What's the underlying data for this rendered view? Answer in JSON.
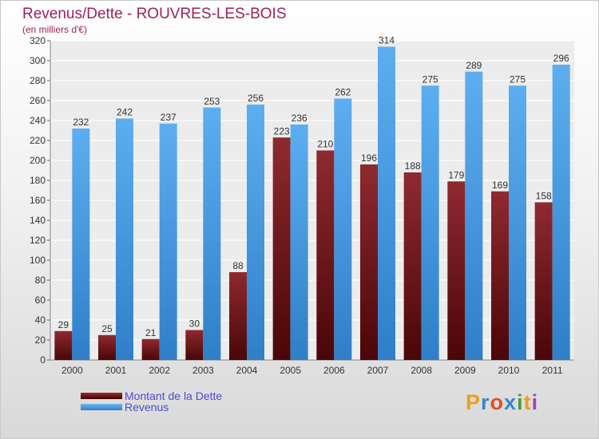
{
  "header": {
    "title": "Revenus/Dette - ROUVRES-LES-BOIS",
    "subtitle": "(en milliers d'€)"
  },
  "chart_data": {
    "type": "bar",
    "title": "Revenus/Dette - ROUVRES-LES-BOIS",
    "subtitle": "(en milliers d'€)",
    "categories": [
      "2000",
      "2001",
      "2002",
      "2003",
      "2004",
      "2005",
      "2006",
      "2007",
      "2008",
      "2009",
      "2010",
      "2011"
    ],
    "series": [
      {
        "name": "Montant de la Dette",
        "color": "#7a1318",
        "values": [
          29,
          25,
          21,
          30,
          88,
          223,
          210,
          196,
          188,
          179,
          169,
          158
        ]
      },
      {
        "name": "Revenus",
        "color": "#4fa2e6",
        "values": [
          232,
          242,
          237,
          253,
          256,
          236,
          262,
          314,
          275,
          289,
          275,
          296
        ]
      }
    ],
    "yticks": [
      0,
      20,
      40,
      60,
      80,
      100,
      120,
      140,
      160,
      180,
      200,
      220,
      240,
      260,
      280,
      300,
      320
    ],
    "ylim": [
      0,
      320
    ],
    "grid": true,
    "legend_position": "bottom-left",
    "data_labels": true
  },
  "logo": {
    "text": "Proxiti",
    "letters": [
      "P",
      "r",
      "o",
      "x",
      "i",
      "t",
      "i"
    ],
    "colors": [
      "#e8a020",
      "#3a86c8",
      "#e05020",
      "#3a86c8",
      "#4a9a3a",
      "#e8a020",
      "#9a4ab0"
    ]
  }
}
